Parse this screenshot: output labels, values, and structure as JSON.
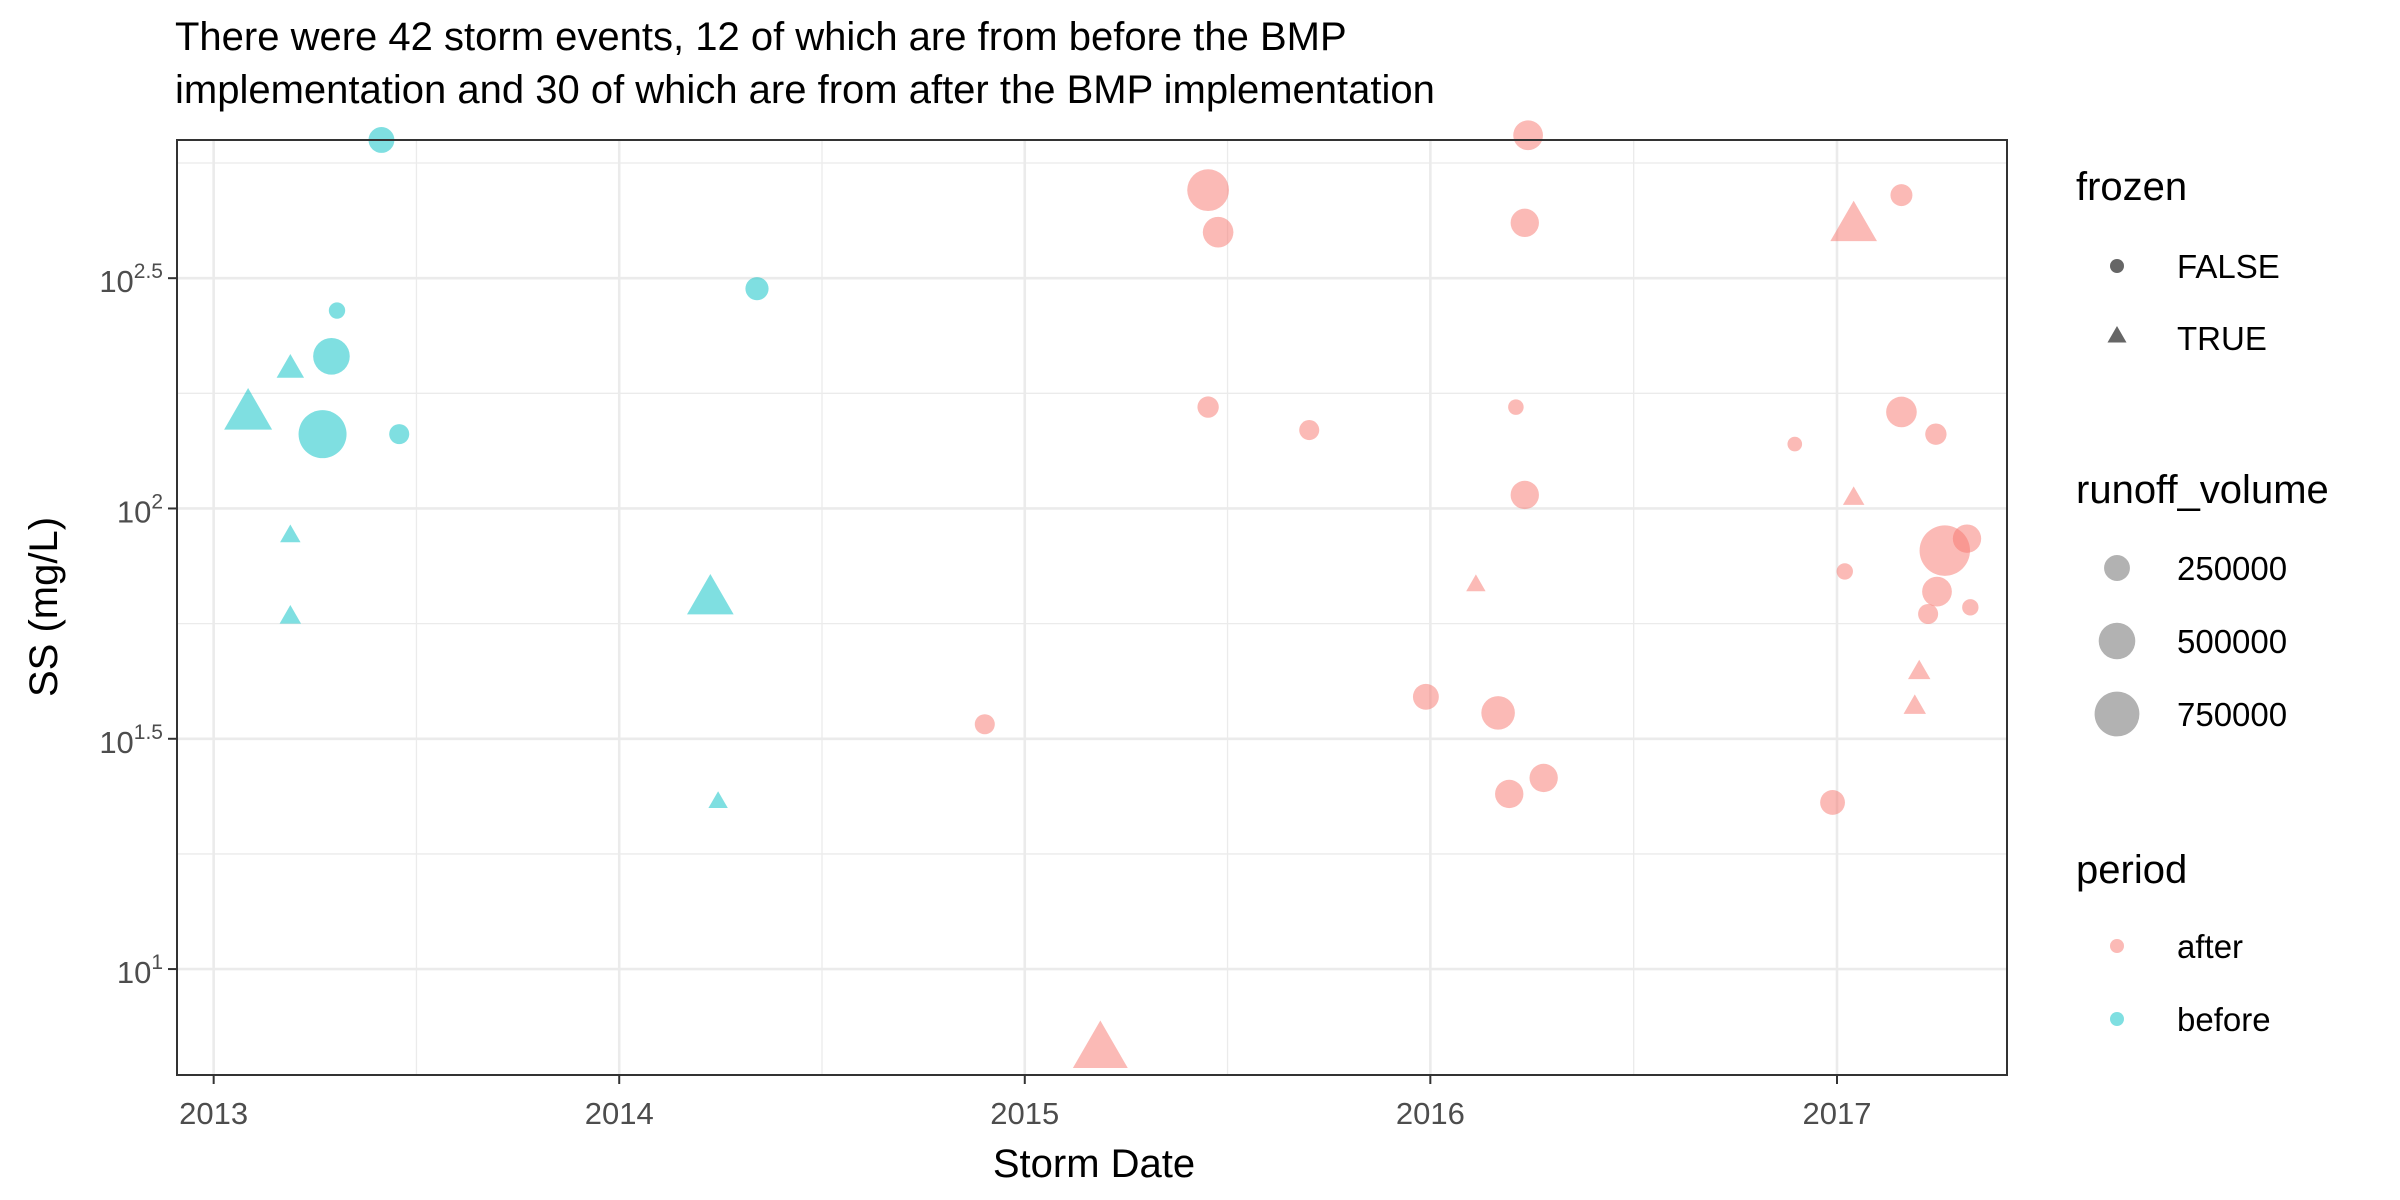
{
  "chart_data": {
    "type": "scatter",
    "title": "There were 42 storm events, 12 of which are from before the BMP implementation and 30 of which are from after the BMP implementation",
    "title_lines": [
      "There were 42 storm events, 12 of which are from before the BMP",
      "implementation and 30 of which are from after the BMP implementation"
    ],
    "xlabel": "Storm Date",
    "ylabel": "SS (mg/L)",
    "x_scale": "date",
    "y_scale": "log10",
    "xlim": [
      "2012-11-29",
      "2017-06-03"
    ],
    "ylim_log10": [
      0.77,
      2.8
    ],
    "x_ticks": [
      {
        "date": "2013-01-01",
        "label": "2013"
      },
      {
        "date": "2014-01-01",
        "label": "2014"
      },
      {
        "date": "2015-01-01",
        "label": "2015"
      },
      {
        "date": "2016-01-01",
        "label": "2016"
      },
      {
        "date": "2017-01-01",
        "label": "2017"
      }
    ],
    "y_ticks": [
      {
        "log10": 1.0,
        "base": "10",
        "exp": "1"
      },
      {
        "log10": 1.5,
        "base": "10",
        "exp": "1.5"
      },
      {
        "log10": 2.0,
        "base": "10",
        "exp": "2"
      },
      {
        "log10": 2.5,
        "base": "10",
        "exp": "2.5"
      }
    ],
    "grid": true,
    "colors": {
      "after": "#F8766D",
      "before": "#00BFC4",
      "legend_key": "#666666",
      "panel_border": "#333333",
      "grid": "#EBEBEB"
    },
    "legend": {
      "position": "right",
      "frozen": {
        "title": "frozen",
        "items": [
          {
            "label": "FALSE",
            "shape": "circle"
          },
          {
            "label": "TRUE",
            "shape": "triangle"
          }
        ]
      },
      "runoff_volume": {
        "title": "runoff_volume",
        "items": [
          {
            "label": "250000",
            "value": 250000
          },
          {
            "label": "500000",
            "value": 500000
          },
          {
            "label": "750000",
            "value": 750000
          }
        ]
      },
      "period": {
        "title": "period",
        "items": [
          {
            "label": "after",
            "color": "#F8766D"
          },
          {
            "label": "before",
            "color": "#00BFC4"
          }
        ]
      }
    },
    "series": [
      {
        "name": "before",
        "points": [
          {
            "date": "2013-06-01",
            "y": 631,
            "frozen": false,
            "runoff_volume": 250000
          },
          {
            "date": "2013-04-22",
            "y": 269,
            "frozen": false,
            "runoff_volume": 100000
          },
          {
            "date": "2013-04-17",
            "y": 214,
            "frozen": false,
            "runoff_volume": 500000
          },
          {
            "date": "2013-04-09",
            "y": 145,
            "frozen": false,
            "runoff_volume": 860000
          },
          {
            "date": "2013-06-17",
            "y": 145,
            "frozen": false,
            "runoff_volume": 150000
          },
          {
            "date": "2013-03-11",
            "y": 200,
            "frozen": true,
            "runoff_volume": 180000
          },
          {
            "date": "2013-02-01",
            "y": 159,
            "frozen": true,
            "runoff_volume": 550000
          },
          {
            "date": "2013-03-11",
            "y": 87,
            "frozen": true,
            "runoff_volume": 100000
          },
          {
            "date": "2013-03-11",
            "y": 58,
            "frozen": true,
            "runoff_volume": 110000
          },
          {
            "date": "2014-05-05",
            "y": 300,
            "frozen": false,
            "runoff_volume": 200000
          },
          {
            "date": "2014-03-24",
            "y": 63,
            "frozen": true,
            "runoff_volume": 520000
          },
          {
            "date": "2014-03-31",
            "y": 23,
            "frozen": true,
            "runoff_volume": 90000
          }
        ]
      },
      {
        "name": "after",
        "points": [
          {
            "date": "2015-06-15",
            "y": 491,
            "frozen": false,
            "runoff_volume": 650000
          },
          {
            "date": "2015-06-24",
            "y": 398,
            "frozen": false,
            "runoff_volume": 350000
          },
          {
            "date": "2015-06-15",
            "y": 166,
            "frozen": false,
            "runoff_volume": 170000
          },
          {
            "date": "2015-09-14",
            "y": 148,
            "frozen": false,
            "runoff_volume": 150000
          },
          {
            "date": "2015-12-28",
            "y": 39,
            "frozen": false,
            "runoff_volume": 250000
          },
          {
            "date": "2014-11-26",
            "y": 34,
            "frozen": false,
            "runoff_volume": 150000
          },
          {
            "date": "2015-03-10",
            "y": 6.6,
            "frozen": true,
            "runoff_volume": 720000
          },
          {
            "date": "2016-03-29",
            "y": 646,
            "frozen": false,
            "runoff_volume": 330000
          },
          {
            "date": "2016-03-26",
            "y": 417,
            "frozen": false,
            "runoff_volume": 300000
          },
          {
            "date": "2016-03-18",
            "y": 166,
            "frozen": false,
            "runoff_volume": 90000
          },
          {
            "date": "2016-03-26",
            "y": 107,
            "frozen": false,
            "runoff_volume": 300000
          },
          {
            "date": "2016-02-11",
            "y": 68,
            "frozen": true,
            "runoff_volume": 90000
          },
          {
            "date": "2016-03-02",
            "y": 36,
            "frozen": false,
            "runoff_volume": 420000
          },
          {
            "date": "2016-04-12",
            "y": 26,
            "frozen": false,
            "runoff_volume": 300000
          },
          {
            "date": "2016-03-12",
            "y": 24,
            "frozen": false,
            "runoff_volume": 300000
          },
          {
            "date": "2017-02-28",
            "y": 479,
            "frozen": false,
            "runoff_volume": 180000
          },
          {
            "date": "2017-01-16",
            "y": 407,
            "frozen": true,
            "runoff_volume": 520000
          },
          {
            "date": "2017-02-28",
            "y": 162,
            "frozen": false,
            "runoff_volume": 350000
          },
          {
            "date": "2017-03-31",
            "y": 145,
            "frozen": false,
            "runoff_volume": 170000
          },
          {
            "date": "2016-11-24",
            "y": 138,
            "frozen": false,
            "runoff_volume": 80000
          },
          {
            "date": "2017-01-16",
            "y": 105,
            "frozen": true,
            "runoff_volume": 110000
          },
          {
            "date": "2017-04-28",
            "y": 86,
            "frozen": false,
            "runoff_volume": 300000
          },
          {
            "date": "2017-04-08",
            "y": 81,
            "frozen": false,
            "runoff_volume": 950000
          },
          {
            "date": "2017-01-08",
            "y": 73,
            "frozen": false,
            "runoff_volume": 100000
          },
          {
            "date": "2017-04-01",
            "y": 66,
            "frozen": false,
            "runoff_volume": 330000
          },
          {
            "date": "2017-05-01",
            "y": 61,
            "frozen": false,
            "runoff_volume": 100000
          },
          {
            "date": "2017-03-24",
            "y": 59,
            "frozen": false,
            "runoff_volume": 150000
          },
          {
            "date": "2017-03-16",
            "y": 44,
            "frozen": true,
            "runoff_volume": 120000
          },
          {
            "date": "2017-03-12",
            "y": 37,
            "frozen": true,
            "runoff_volume": 120000
          },
          {
            "date": "2016-12-28",
            "y": 23,
            "frozen": false,
            "runoff_volume": 230000
          }
        ]
      }
    ]
  }
}
